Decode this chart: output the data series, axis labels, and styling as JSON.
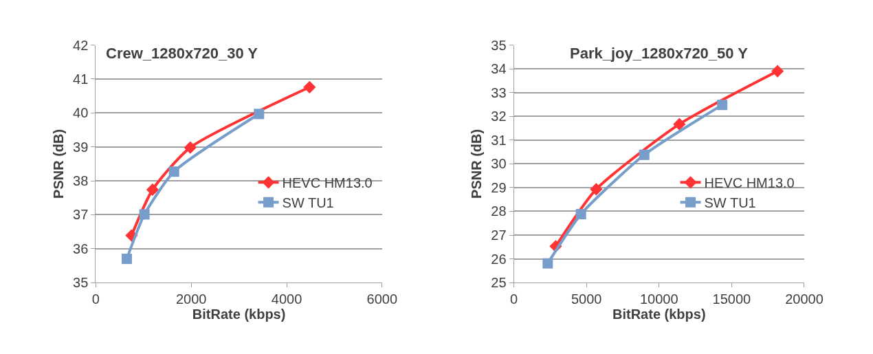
{
  "chart_data": [
    {
      "type": "line",
      "title": "Crew_1280x720_30 Y",
      "xlabel": "BitRate (kbps)",
      "ylabel": "PSNR (dB)",
      "xlim": [
        0,
        6000
      ],
      "xticks": [
        0,
        2000,
        4000,
        6000
      ],
      "ylim": [
        35,
        42
      ],
      "yticks": [
        35,
        36,
        37,
        38,
        39,
        40,
        41,
        42
      ],
      "grid": "y",
      "legend": "right",
      "series": [
        {
          "name": "HEVC HM13.0",
          "color": "#ff3333",
          "marker": "diamond",
          "x": [
            750,
            1190,
            1980,
            4480
          ],
          "values": [
            36.39,
            37.74,
            38.98,
            40.76
          ]
        },
        {
          "name": "SW TU1",
          "color": "#779ecb",
          "marker": "square",
          "x": [
            650,
            1020,
            1640,
            3420
          ],
          "values": [
            35.7,
            37.01,
            38.27,
            39.97
          ]
        }
      ]
    },
    {
      "type": "line",
      "title": "Park_joy_1280x720_50 Y",
      "xlabel": "BitRate (kbps)",
      "ylabel": "PSNR (dB)",
      "xlim": [
        0,
        20000
      ],
      "xticks": [
        0,
        5000,
        10000,
        15000,
        20000
      ],
      "ylim": [
        25,
        35
      ],
      "yticks": [
        25,
        26,
        27,
        28,
        29,
        30,
        31,
        32,
        33,
        34,
        35
      ],
      "grid": "y",
      "legend": "right",
      "series": [
        {
          "name": "HEVC HM13.0",
          "color": "#ff3333",
          "marker": "diamond",
          "x": [
            2880,
            5670,
            11400,
            18160
          ],
          "values": [
            26.53,
            28.93,
            31.67,
            33.9
          ]
        },
        {
          "name": "SW TU1",
          "color": "#779ecb",
          "marker": "square",
          "x": [
            2330,
            4620,
            8980,
            14350
          ],
          "values": [
            25.81,
            27.88,
            30.38,
            32.48
          ]
        }
      ]
    }
  ]
}
